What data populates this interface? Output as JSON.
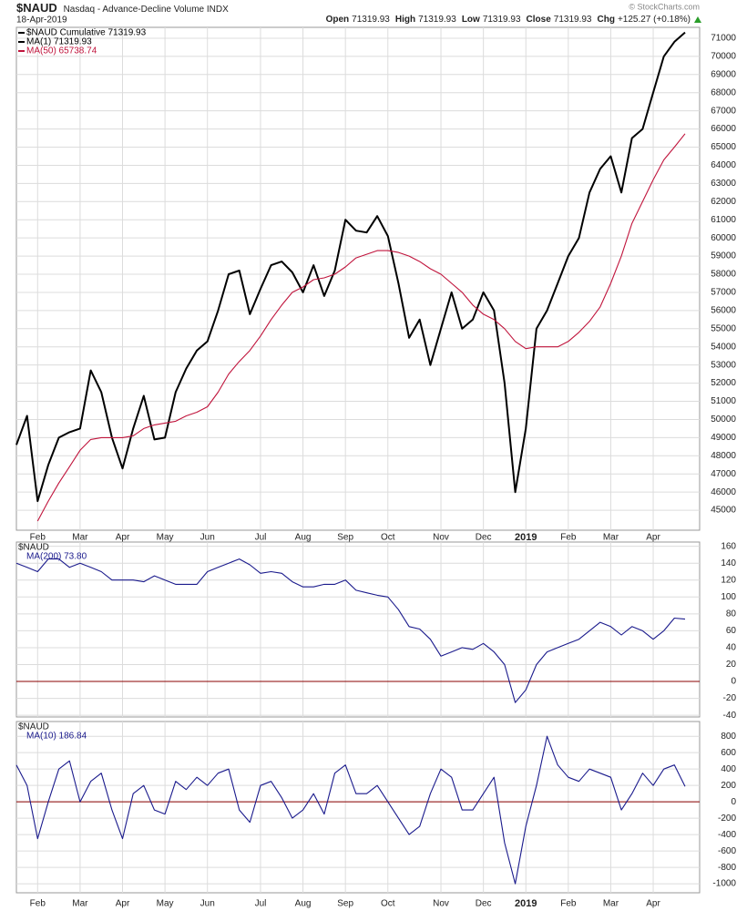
{
  "header": {
    "symbol": "$NAUD",
    "description": "Nasdaq - Advance-Decline Volume INDX",
    "date": "18-Apr-2019",
    "copyright": "© StockCharts.com",
    "quote": [
      {
        "label": "Open",
        "value": "71319.93"
      },
      {
        "label": "High",
        "value": "71319.93"
      },
      {
        "label": "Low",
        "value": "71319.93"
      },
      {
        "label": "Close",
        "value": "71319.93"
      },
      {
        "label": "Chg",
        "value": "+125.27 (+0.18%)"
      }
    ]
  },
  "chart_data": [
    {
      "type": "line",
      "grid": true,
      "legend_note": "MA(1) 71319.93",
      "categories": [
        null,
        null,
        "Feb",
        null,
        null,
        null,
        "Mar",
        null,
        null,
        null,
        "Apr",
        null,
        null,
        null,
        "May",
        null,
        null,
        null,
        "Jun",
        null,
        null,
        null,
        null,
        "Jul",
        null,
        null,
        null,
        "Aug",
        null,
        null,
        null,
        "Sep",
        null,
        null,
        null,
        "Oct",
        null,
        null,
        null,
        null,
        "Nov",
        null,
        null,
        null,
        "Dec",
        null,
        null,
        null,
        "2019",
        null,
        null,
        null,
        "Feb",
        null,
        null,
        null,
        "Mar",
        null,
        null,
        null,
        "Apr",
        null,
        null,
        null
      ],
      "ylim": [
        43900,
        71600
      ],
      "yticks": [
        45000,
        46000,
        47000,
        48000,
        49000,
        50000,
        51000,
        52000,
        53000,
        54000,
        55000,
        56000,
        57000,
        58000,
        59000,
        60000,
        61000,
        62000,
        63000,
        64000,
        65000,
        66000,
        67000,
        68000,
        69000,
        70000,
        71000
      ],
      "series": [
        {
          "name": "$NAUD Cumulative 71319.93",
          "color": "#000000",
          "values": [
            48600,
            50200,
            45500,
            47500,
            49000,
            49300,
            49500,
            52700,
            51500,
            49000,
            47300,
            49500,
            51300,
            48900,
            49000,
            51500,
            52800,
            53800,
            54300,
            56000,
            58000,
            58200,
            55800,
            57200,
            58500,
            58700,
            58100,
            57000,
            58500,
            56800,
            58200,
            61000,
            60400,
            60300,
            61200,
            60100,
            57500,
            54500,
            55500,
            53000,
            55000,
            57000,
            55000,
            55500,
            57000,
            56000,
            52000,
            46000,
            49500,
            55000,
            56000,
            57500,
            59000,
            60000,
            62500,
            63800,
            64500,
            62500,
            65500,
            66000,
            68000,
            70000,
            70800,
            71319.93
          ]
        },
        {
          "name": "MA(50) 65738.74",
          "color": "#c0143c",
          "values": [
            null,
            null,
            44400,
            45500,
            46500,
            47400,
            48300,
            48900,
            49000,
            49000,
            49000,
            49100,
            49500,
            49700,
            49800,
            49900,
            50200,
            50400,
            50700,
            51500,
            52500,
            53200,
            53800,
            54600,
            55500,
            56300,
            57000,
            57300,
            57700,
            57800,
            58000,
            58400,
            58900,
            59100,
            59300,
            59300,
            59200,
            59000,
            58700,
            58300,
            58000,
            57500,
            57000,
            56300,
            55800,
            55500,
            55000,
            54300,
            53900,
            54000,
            54000,
            54000,
            54300,
            54800,
            55400,
            56200,
            57500,
            59000,
            60800,
            62000,
            63200,
            64300,
            65000,
            65738.74
          ]
        }
      ]
    },
    {
      "type": "line",
      "grid": true,
      "title": "$NAUD",
      "hline": 0,
      "ylim": [
        -42,
        165
      ],
      "yticks": [
        -40,
        -20,
        0,
        20,
        40,
        60,
        80,
        100,
        120,
        140,
        160
      ],
      "series": [
        {
          "name": "MA(200) 73.80",
          "color": "#1a1a8c",
          "values": [
            140,
            135,
            130,
            145,
            145,
            135,
            140,
            135,
            130,
            120,
            120,
            120,
            118,
            125,
            120,
            115,
            115,
            115,
            130,
            135,
            140,
            145,
            138,
            128,
            130,
            128,
            118,
            112,
            112,
            115,
            115,
            120,
            108,
            105,
            102,
            100,
            85,
            65,
            62,
            50,
            30,
            35,
            40,
            38,
            45,
            35,
            20,
            -25,
            -10,
            20,
            35,
            40,
            45,
            50,
            60,
            70,
            65,
            55,
            65,
            60,
            50,
            60,
            75,
            73.8
          ]
        }
      ]
    },
    {
      "type": "line",
      "grid": true,
      "title": "$NAUD",
      "hline": 0,
      "categories": [
        null,
        null,
        "Feb",
        null,
        null,
        null,
        "Mar",
        null,
        null,
        null,
        "Apr",
        null,
        null,
        null,
        "May",
        null,
        null,
        null,
        "Jun",
        null,
        null,
        null,
        null,
        "Jul",
        null,
        null,
        null,
        "Aug",
        null,
        null,
        null,
        "Sep",
        null,
        null,
        null,
        "Oct",
        null,
        null,
        null,
        null,
        "Nov",
        null,
        null,
        null,
        "Dec",
        null,
        null,
        null,
        "2019",
        null,
        null,
        null,
        "Feb",
        null,
        null,
        null,
        "Mar",
        null,
        null,
        null,
        "Apr",
        null,
        null,
        null
      ],
      "ylim": [
        -1110,
        980
      ],
      "yticks": [
        -1000,
        -800,
        -600,
        -400,
        -200,
        0,
        200,
        400,
        600,
        800
      ],
      "series": [
        {
          "name": "MA(10) 186.84",
          "color": "#1a1a8c",
          "values": [
            450,
            200,
            -450,
            0,
            400,
            500,
            0,
            250,
            350,
            -100,
            -450,
            100,
            200,
            -100,
            -150,
            250,
            150,
            300,
            200,
            350,
            400,
            -100,
            -250,
            200,
            250,
            50,
            -200,
            -100,
            100,
            -150,
            350,
            450,
            100,
            100,
            200,
            0,
            -200,
            -400,
            -300,
            100,
            400,
            300,
            -100,
            -100,
            100,
            300,
            -500,
            -1000,
            -300,
            200,
            800,
            450,
            300,
            250,
            400,
            350,
            300,
            -100,
            100,
            350,
            200,
            400,
            450,
            186.84
          ]
        }
      ]
    }
  ]
}
